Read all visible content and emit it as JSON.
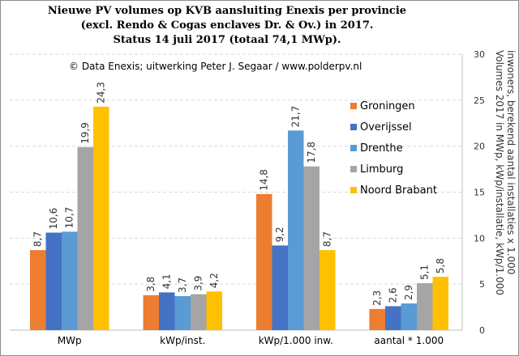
{
  "chart_data": {
    "type": "bar",
    "title_lines": [
      "Nieuwe PV volumes op KVB aansluiting  Enexis per provincie",
      "(excl. Rendo & Cogas enclaves Dr. & Ov.) in 2017.",
      "Status 14 juli 2017 (totaal 74,1 MWp)."
    ],
    "annotation": "© Data Enexis;  uitwerking  Peter J. Segaar / www.polderpv.nl",
    "ylabel_lines": [
      "Volumes 2017 in MWp, kWp/installatie, kWp/1.000",
      "inwoners, berekend aantal installaties x 1.000"
    ],
    "categories": [
      "MWp",
      "kWp/inst.",
      "kWp/1.000 inw.",
      "aantal * 1.000"
    ],
    "series": [
      {
        "name": "Groningen",
        "color": "#ED7D31",
        "values": [
          8.7,
          3.8,
          14.8,
          2.3
        ],
        "labels": [
          "8,7",
          "3,8",
          "14,8",
          "2,3"
        ]
      },
      {
        "name": "Overijssel",
        "color": "#4472C4",
        "values": [
          10.6,
          4.1,
          9.2,
          2.6
        ],
        "labels": [
          "10,6",
          "4,1",
          "9,2",
          "2,6"
        ]
      },
      {
        "name": "Drenthe",
        "color": "#5B9BD5",
        "values": [
          10.7,
          3.7,
          21.7,
          2.9
        ],
        "labels": [
          "10,7",
          "3,7",
          "21,7",
          "2,9"
        ]
      },
      {
        "name": "Limburg",
        "color": "#A5A5A5",
        "values": [
          19.9,
          3.9,
          17.8,
          5.1
        ],
        "labels": [
          "19,9",
          "3,9",
          "17,8",
          "5,1"
        ]
      },
      {
        "name": "Noord Brabant",
        "color": "#FFC000",
        "values": [
          24.3,
          4.2,
          8.7,
          5.8
        ],
        "labels": [
          "24,3",
          "4,2",
          "8,7",
          "5,8"
        ]
      }
    ],
    "yaxis_side": "right",
    "ylim": [
      0,
      30
    ],
    "yticks": [
      0,
      5,
      10,
      15,
      20,
      25,
      30
    ],
    "grid": true,
    "legend_position": "right-inside"
  }
}
